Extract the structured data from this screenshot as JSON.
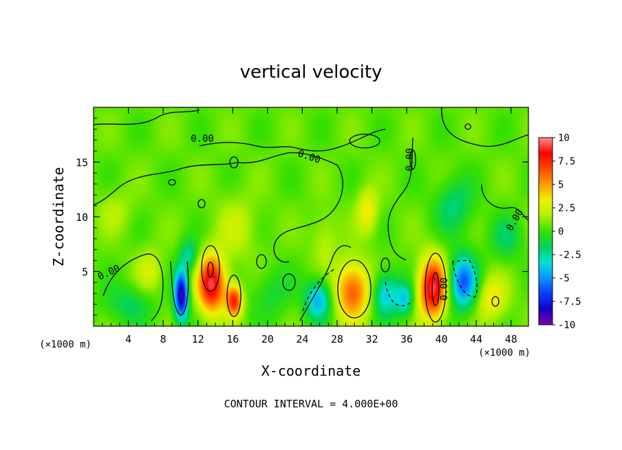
{
  "chart_data": {
    "type": "heatmap",
    "title": "vertical velocity",
    "xlabel": "X-coordinate",
    "ylabel": "Z-coordinate",
    "x_units_left": "(×1000 m)",
    "x_units_right": "(×1000 m)",
    "xlim": [
      0,
      50
    ],
    "ylim": [
      0,
      20
    ],
    "xticks": [
      "4",
      "8",
      "12",
      "16",
      "20",
      "24",
      "28",
      "32",
      "36",
      "40",
      "44",
      "48"
    ],
    "yticks": [
      "5",
      "10",
      "15"
    ],
    "colorbar": {
      "labels": [
        "10",
        "7.5",
        "5",
        "2.5",
        "0",
        "-2.5",
        "-5",
        "-7.5",
        "-10"
      ],
      "vmin": -10,
      "vmax": 10,
      "stops": [
        "#7b00a8",
        "#1500c8",
        "#0a3cff",
        "#0a96ff",
        "#00e0d6",
        "#00d25a",
        "#38e000",
        "#b0f000",
        "#f0f000",
        "#ff9c00",
        "#ff4a00",
        "#ff0000",
        "#ff8f8f"
      ]
    },
    "footer": "CONTOUR INTERVAL = 4.000E+00",
    "contour_labels": [
      "0.00",
      "0.00",
      "0.00",
      "0.00",
      "0.00",
      "0.00"
    ],
    "background_value": 0.5,
    "features": [
      {
        "x": 13.6,
        "z": 3.8,
        "rx": 1.6,
        "rz": 2.6,
        "value": 8.5
      },
      {
        "x": 16.2,
        "z": 2.3,
        "rx": 0.9,
        "rz": 1.4,
        "value": 7.0
      },
      {
        "x": 10.1,
        "z": 2.8,
        "rx": 0.8,
        "rz": 2.3,
        "value": -9.5
      },
      {
        "x": 29.8,
        "z": 3.2,
        "rx": 2.0,
        "rz": 2.6,
        "value": 6.0
      },
      {
        "x": 39.0,
        "z": 3.4,
        "rx": 1.6,
        "rz": 2.8,
        "value": 8.5
      },
      {
        "x": 42.5,
        "z": 4.0,
        "rx": 1.6,
        "rz": 2.4,
        "value": -6.5
      },
      {
        "x": 25.8,
        "z": 2.4,
        "rx": 1.5,
        "rz": 1.8,
        "value": -5.0
      },
      {
        "x": 33.6,
        "z": 2.9,
        "rx": 1.5,
        "rz": 2.0,
        "value": -4.5
      },
      {
        "x": 35.8,
        "z": 2.4,
        "rx": 1.0,
        "rz": 1.5,
        "value": -4.0
      },
      {
        "x": 45.8,
        "z": 2.5,
        "rx": 1.8,
        "rz": 2.0,
        "value": 3.0
      },
      {
        "x": 4.0,
        "z": 2.0,
        "rx": 2.8,
        "rz": 1.8,
        "value": -2.0
      },
      {
        "x": 20.5,
        "z": 3.0,
        "rx": 2.2,
        "rz": 2.2,
        "value": -1.5
      },
      {
        "x": 6.5,
        "z": 5.0,
        "rx": 1.5,
        "rz": 2.0,
        "value": 2.0
      },
      {
        "x": 31.5,
        "z": 10.5,
        "rx": 1.2,
        "rz": 2.0,
        "value": 3.0
      },
      {
        "x": 41.5,
        "z": 11.0,
        "rx": 2.2,
        "rz": 2.5,
        "value": -2.5
      },
      {
        "x": 47.5,
        "z": 8.0,
        "rx": 1.8,
        "rz": 2.0,
        "value": -2.0
      },
      {
        "x": 26.5,
        "z": 8.0,
        "rx": 1.5,
        "rz": 2.5,
        "value": 1.5
      },
      {
        "x": 16.5,
        "z": 9.0,
        "rx": 2.5,
        "rz": 3.0,
        "value": 1.5
      },
      {
        "x": 2.5,
        "z": 10.5,
        "rx": 2.0,
        "rz": 2.0,
        "value": 1.2
      },
      {
        "x": 11.0,
        "z": 6.5,
        "rx": 1.0,
        "rz": 1.5,
        "value": -3.0
      }
    ]
  }
}
